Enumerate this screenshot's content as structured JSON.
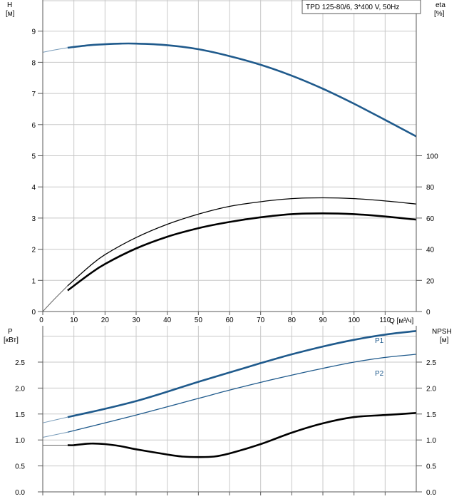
{
  "colors": {
    "head": "#1f5a8c",
    "power": "#1f5a8c",
    "eta": "#000000",
    "npsh": "#000000",
    "grid": "#c8c8c8",
    "frame": "#5a5a5a"
  },
  "chart_data": [
    {
      "type": "line",
      "panel": "top",
      "legend": "TPD 125-80/6, 3*400 V, 50Hz",
      "legend_position": "top-right",
      "grid": true,
      "xlabel": "Q [м³/ч]",
      "xlim": [
        0,
        120
      ],
      "xticks": [
        0,
        10,
        20,
        30,
        40,
        50,
        60,
        70,
        80,
        90,
        100,
        110
      ],
      "y_left": {
        "label_line1": "H",
        "label_line2": "[м]",
        "lim": [
          0,
          10
        ],
        "ticks": [
          0,
          1,
          2,
          3,
          4,
          5,
          6,
          7,
          8,
          9
        ]
      },
      "y_right": {
        "label_line1": "eta",
        "label_line2": "[%]",
        "lim": [
          0,
          200
        ],
        "ticks": [
          0,
          20,
          40,
          60,
          80,
          100
        ]
      },
      "series": [
        {
          "key": "head",
          "axis": "left",
          "style": "thick",
          "x": [
            8,
            15,
            20,
            25,
            30,
            40,
            50,
            60,
            70,
            80,
            90,
            100,
            110,
            120
          ],
          "y": [
            8.47,
            8.55,
            8.58,
            8.6,
            8.6,
            8.55,
            8.42,
            8.2,
            7.92,
            7.57,
            7.15,
            6.67,
            6.15,
            5.62
          ],
          "ext_x": [
            0,
            4,
            8
          ],
          "ext_y": [
            8.32,
            8.4,
            8.47
          ]
        },
        {
          "key": "eta1",
          "axis": "right",
          "style": "thin",
          "x": [
            8,
            15,
            20,
            30,
            40,
            50,
            60,
            70,
            80,
            90,
            100,
            110,
            120
          ],
          "y": [
            16.5,
            29,
            36.5,
            47.5,
            56,
            62.5,
            67.5,
            70.5,
            72.5,
            73,
            72.5,
            71,
            69
          ],
          "ext_x": [
            0,
            4,
            8
          ],
          "ext_y": [
            0,
            8.5,
            16.5
          ]
        },
        {
          "key": "eta2",
          "axis": "right",
          "style": "thick",
          "x": [
            8,
            15,
            20,
            30,
            40,
            50,
            60,
            70,
            80,
            90,
            100,
            110,
            120
          ],
          "y": [
            13.5,
            24,
            30.5,
            40.5,
            48,
            53.5,
            57.5,
            60.5,
            62.5,
            63,
            62.5,
            61,
            59
          ]
        }
      ]
    },
    {
      "type": "line",
      "panel": "bottom",
      "grid": true,
      "xlim": [
        0,
        120
      ],
      "y_left": {
        "label_line1": "P",
        "label_line2": "[кВт]",
        "lim": [
          0,
          3.2
        ],
        "ticks": [
          "0.0",
          "0.5",
          "1.0",
          "1.5",
          "2.0",
          "2.5"
        ]
      },
      "y_right": {
        "label_line1": "NPSH",
        "label_line2": "[м]",
        "lim": [
          0,
          3.2
        ],
        "ticks": [
          "0.0",
          "0.5",
          "1.0",
          "1.5",
          "2.0",
          "2.5"
        ]
      },
      "series": [
        {
          "key": "p1",
          "name": "P1",
          "axis": "left",
          "style": "thick",
          "x": [
            8,
            20,
            30,
            40,
            50,
            60,
            70,
            80,
            90,
            100,
            110,
            120
          ],
          "y": [
            1.44,
            1.6,
            1.75,
            1.93,
            2.12,
            2.3,
            2.48,
            2.65,
            2.8,
            2.93,
            3.03,
            3.1
          ],
          "ext_x": [
            0,
            8
          ],
          "ext_y": [
            1.33,
            1.44
          ]
        },
        {
          "key": "p2",
          "name": "P2",
          "axis": "left",
          "style": "thin",
          "x": [
            8,
            20,
            30,
            40,
            50,
            60,
            70,
            80,
            90,
            100,
            110,
            120
          ],
          "y": [
            1.15,
            1.33,
            1.48,
            1.64,
            1.8,
            1.96,
            2.11,
            2.25,
            2.38,
            2.5,
            2.59,
            2.65
          ],
          "ext_x": [
            0,
            8
          ],
          "ext_y": [
            1.05,
            1.15
          ]
        },
        {
          "key": "npsh",
          "axis": "right",
          "style": "thick",
          "x": [
            8,
            10,
            15,
            20,
            25,
            30,
            40,
            45,
            50,
            55,
            60,
            70,
            80,
            90,
            100,
            110,
            120
          ],
          "y": [
            0.9,
            0.9,
            0.93,
            0.92,
            0.88,
            0.82,
            0.72,
            0.68,
            0.67,
            0.68,
            0.74,
            0.92,
            1.14,
            1.32,
            1.44,
            1.48,
            1.52
          ],
          "ext_x": [
            0,
            8
          ],
          "ext_y": [
            0.9,
            0.9
          ]
        }
      ]
    }
  ]
}
